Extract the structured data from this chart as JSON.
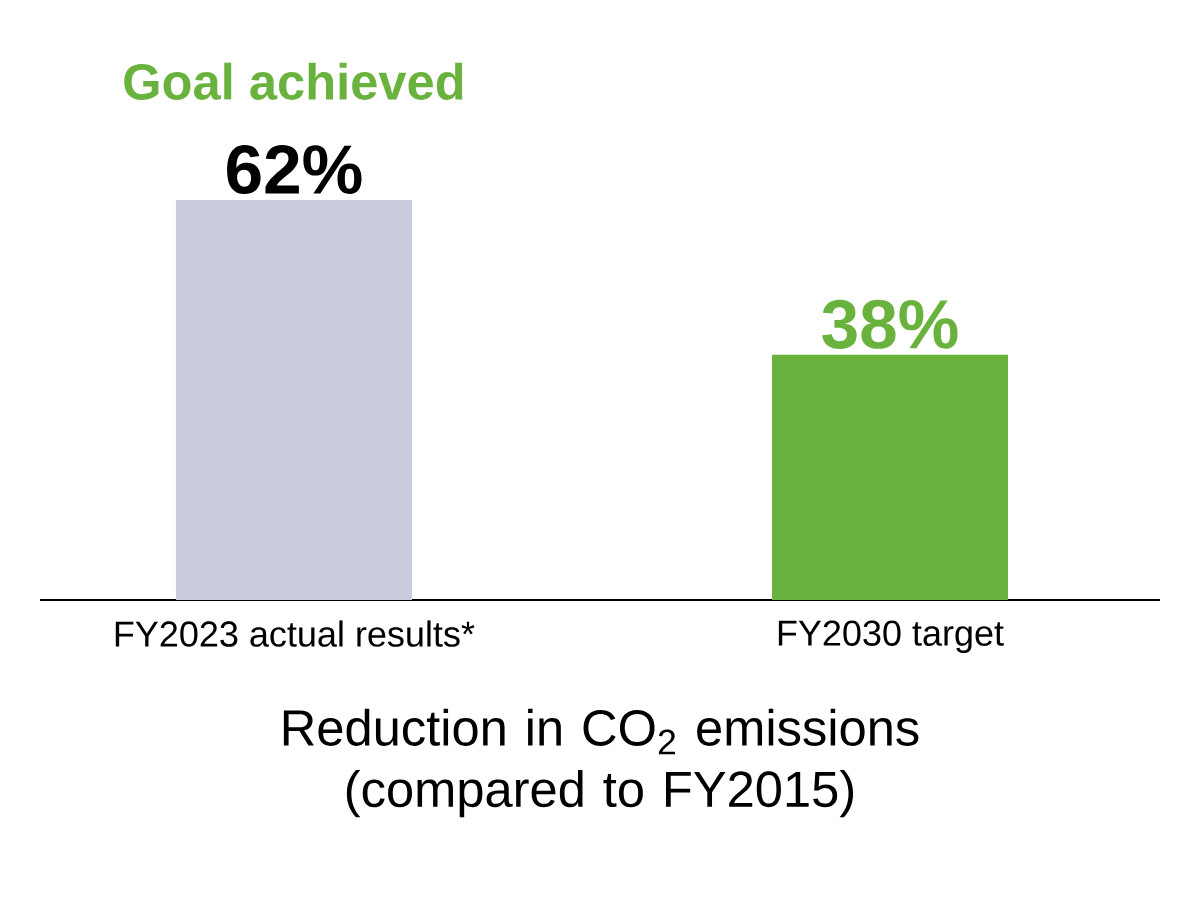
{
  "chart_data": {
    "type": "bar",
    "categories": [
      "FY2023 actual results*",
      "FY2030 target"
    ],
    "values": [
      62,
      38
    ],
    "colors": [
      "#c8ccdc",
      "#6ab23e"
    ],
    "value_labels": [
      "62%",
      "38%"
    ],
    "xlabel": "Reduction in CO$_{2}$ emissions\n(compared to FY2015)",
    "annotations": [
      {
        "text": "Goal achieved",
        "x": "FY2023 actual results*",
        "y": 62
      }
    ]
  }
}
